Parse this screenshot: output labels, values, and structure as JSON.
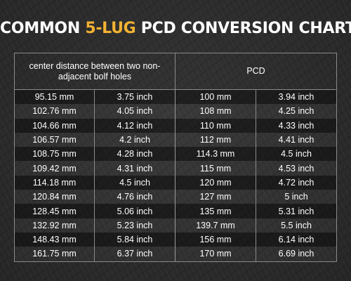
{
  "title": {
    "prefix": "COMMON ",
    "highlight": "5-LUG",
    "suffix": " PCD CONVERSION CHART",
    "highlight_color": "#f2b233"
  },
  "table": {
    "headers": [
      "center distance between two non-adjacent bolf holes",
      "PCD"
    ],
    "rows": [
      [
        "95.15 mm",
        "3.75 inch",
        "100 mm",
        "3.94 inch"
      ],
      [
        "102.76 mm",
        "4.05 inch",
        "108 mm",
        "4.25 inch"
      ],
      [
        "104.66 mm",
        "4.12 inch",
        "110 mm",
        "4.33 inch"
      ],
      [
        "106.57 mm",
        "4.2 inch",
        "112 mm",
        "4.41 inch"
      ],
      [
        "108.75 mm",
        "4.28 inch",
        "114.3 mm",
        "4.5 inch"
      ],
      [
        "109.42 mm",
        "4.31 inch",
        "115 mm",
        "4.53 inch"
      ],
      [
        "114.18 mm",
        "4.5 inch",
        "120 mm",
        "4.72 inch"
      ],
      [
        "120.84 mm",
        "4.76 inch",
        "127 mm",
        "5 inch"
      ],
      [
        "128.45 mm",
        "5.06 inch",
        "135 mm",
        "5.31 inch"
      ],
      [
        "132.92 mm",
        "5.23 inch",
        "139.7 mm",
        "5.5 inch"
      ],
      [
        "148.43 mm",
        "5.84 inch",
        "156 mm",
        "6.14 inch"
      ],
      [
        "161.75 mm",
        "6.37 inch",
        "170 mm",
        "6.69 inch"
      ]
    ]
  }
}
